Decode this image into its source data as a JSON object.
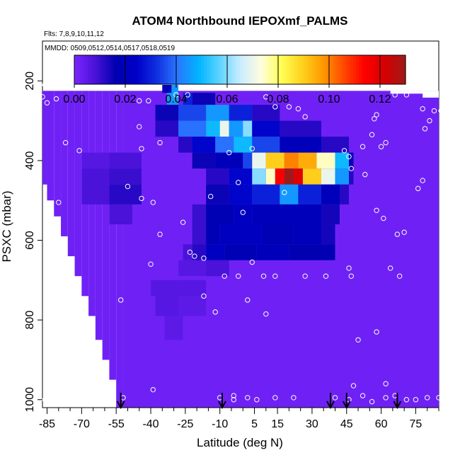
{
  "chart_data": {
    "type": "heatmap",
    "title": "ATOM4 Northbound IEPOXmf_PALMS",
    "info_lines": [
      "Flts: 7,8,9,10,11,12",
      "MMDD: 0509,0512,0514,0517,0518,0519"
    ],
    "xlabel": "Latitude (deg N)",
    "ylabel": "PSXC (mbar)",
    "xlim": [
      -87,
      85
    ],
    "ylim": [
      1020,
      100
    ],
    "x_tick_labels": [
      "-85",
      "-70",
      "-55",
      "-40",
      "-25",
      "-10",
      "5",
      "15",
      "30",
      "45",
      "60",
      "75"
    ],
    "x_tick_values": [
      -85,
      -70,
      -55,
      -40,
      -25,
      -10,
      5,
      15,
      30,
      45,
      60,
      75
    ],
    "x_minor_ticks": [
      -80,
      -75,
      -65,
      -60,
      -50,
      -45,
      -35,
      -30,
      -20,
      -15,
      -5,
      0,
      10,
      20,
      25,
      35,
      40,
      50,
      55,
      65,
      70,
      80,
      85
    ],
    "y_tick_labels": [
      "200",
      "400",
      "600",
      "800",
      "1000"
    ],
    "y_tick_values": [
      200,
      400,
      600,
      800,
      1000
    ],
    "colorbar": {
      "range": [
        0,
        0.13
      ],
      "tick_labels": [
        "0.00",
        "0.02",
        "0.04",
        "0.06",
        "0.08",
        "0.10",
        "0.12"
      ],
      "tick_values": [
        0,
        0.02,
        0.04,
        0.06,
        0.08,
        0.1,
        0.12
      ],
      "colors": [
        "#7b26ff",
        "#4a12d8",
        "#0000b0",
        "#0000c8",
        "#1030e0",
        "#2a78ff",
        "#00b4ff",
        "#5cd3ff",
        "#c8ecff",
        "#fffde0",
        "#ffff55",
        "#ffd21e",
        "#ff9a00",
        "#ff4a00",
        "#ff0000",
        "#d60000",
        "#9e1a1a"
      ]
    },
    "background_value": 0.002,
    "lat_bins": [
      -87.5,
      -82.5,
      -77.5,
      -72.5,
      -67.5,
      -62.5,
      -57.5,
      -52.5,
      -47.5,
      -42.5,
      -37.5,
      -32.5,
      -27.5,
      -22.5,
      -17.5,
      -12.5,
      -7.5,
      -2.5,
      2.5,
      7.5,
      12.5,
      17.5,
      22.5,
      27.5,
      32.5,
      37.5,
      42.5,
      47.5,
      52.5,
      57.5,
      62.5,
      67.5,
      72.5,
      77.5,
      82.5
    ],
    "column_extents": [
      [
        -87,
        -85,
        225,
        1020
      ],
      [
        -85,
        -82,
        225,
        1020
      ],
      [
        -82,
        -79,
        225,
        1020
      ],
      [
        -79,
        -76,
        225,
        1020
      ],
      [
        -76,
        -73,
        225,
        1020
      ],
      [
        -73,
        -70,
        225,
        1020
      ],
      [
        -70,
        -67,
        225,
        1020
      ],
      [
        -67,
        -64,
        225,
        1020
      ],
      [
        -64,
        -61,
        225,
        1020
      ],
      [
        -61,
        -58,
        225,
        1020
      ],
      [
        -58,
        -55,
        225,
        1020
      ],
      [
        -55,
        -52,
        225,
        1020
      ],
      [
        -52,
        85,
        225,
        1020
      ]
    ],
    "anomalies": [
      {
        "lat": [
          -33,
          -28
        ],
        "p": [
          210,
          260
        ],
        "v": 0.045
      },
      {
        "lat": [
          -35,
          -31
        ],
        "p": [
          210,
          230
        ],
        "v": 0.02
      },
      {
        "lat": [
          -26,
          -22
        ],
        "p": [
          230,
          260
        ],
        "v": 0.03
      },
      {
        "lat": [
          -22,
          -12
        ],
        "p": [
          230,
          260
        ],
        "v": 0.015
      },
      {
        "lat": [
          -38,
          -28
        ],
        "p": [
          260,
          300
        ],
        "v": 0.015
      },
      {
        "lat": [
          -28,
          -16
        ],
        "p": [
          260,
          300
        ],
        "v": 0.035
      },
      {
        "lat": [
          -16,
          -6
        ],
        "p": [
          260,
          300
        ],
        "v": 0.045
      },
      {
        "lat": [
          -6,
          4
        ],
        "p": [
          260,
          300
        ],
        "v": 0.03
      },
      {
        "lat": [
          4,
          16
        ],
        "p": [
          260,
          300
        ],
        "v": 0.012
      },
      {
        "lat": [
          -38,
          -28
        ],
        "p": [
          300,
          340
        ],
        "v": 0.012
      },
      {
        "lat": [
          -28,
          -16
        ],
        "p": [
          300,
          340
        ],
        "v": 0.04
      },
      {
        "lat": [
          -16,
          -10
        ],
        "p": [
          300,
          340
        ],
        "v": 0.05
      },
      {
        "lat": [
          -10,
          -6
        ],
        "p": [
          300,
          340
        ],
        "v": 0.07
      },
      {
        "lat": [
          -6,
          0
        ],
        "p": [
          300,
          340
        ],
        "v": 0.045
      },
      {
        "lat": [
          0,
          4
        ],
        "p": [
          300,
          340
        ],
        "v": 0.06
      },
      {
        "lat": [
          4,
          16
        ],
        "p": [
          300,
          340
        ],
        "v": 0.025
      },
      {
        "lat": [
          16,
          34
        ],
        "p": [
          300,
          340
        ],
        "v": 0.012
      },
      {
        "lat": [
          -28,
          -22
        ],
        "p": [
          340,
          380
        ],
        "v": 0.012
      },
      {
        "lat": [
          -22,
          -12
        ],
        "p": [
          340,
          380
        ],
        "v": 0.025
      },
      {
        "lat": [
          -12,
          -4
        ],
        "p": [
          340,
          380
        ],
        "v": 0.04
      },
      {
        "lat": [
          -4,
          4
        ],
        "p": [
          340,
          380
        ],
        "v": 0.05
      },
      {
        "lat": [
          4,
          16
        ],
        "p": [
          340,
          380
        ],
        "v": 0.035
      },
      {
        "lat": [
          16,
          34
        ],
        "p": [
          340,
          380
        ],
        "v": 0.02
      },
      {
        "lat": [
          34,
          46
        ],
        "p": [
          340,
          380
        ],
        "v": 0.012
      },
      {
        "lat": [
          -70,
          -58
        ],
        "p": [
          380,
          420
        ],
        "v": 0.006
      },
      {
        "lat": [
          -58,
          -44
        ],
        "p": [
          380,
          420
        ],
        "v": 0.008
      },
      {
        "lat": [
          -22,
          -12
        ],
        "p": [
          380,
          420
        ],
        "v": 0.015
      },
      {
        "lat": [
          -12,
          0
        ],
        "p": [
          380,
          420
        ],
        "v": 0.02
      },
      {
        "lat": [
          0,
          4
        ],
        "p": [
          380,
          420
        ],
        "v": 0.035
      },
      {
        "lat": [
          4,
          10
        ],
        "p": [
          380,
          420
        ],
        "v": 0.07
      },
      {
        "lat": [
          10,
          18
        ],
        "p": [
          380,
          420
        ],
        "v": 0.09
      },
      {
        "lat": [
          18,
          24
        ],
        "p": [
          380,
          420
        ],
        "v": 0.1
      },
      {
        "lat": [
          24,
          32
        ],
        "p": [
          380,
          420
        ],
        "v": 0.095
      },
      {
        "lat": [
          32,
          40
        ],
        "p": [
          380,
          420
        ],
        "v": 0.075
      },
      {
        "lat": [
          40,
          46
        ],
        "p": [
          380,
          420
        ],
        "v": 0.05
      },
      {
        "lat": [
          46,
          48
        ],
        "p": [
          380,
          420
        ],
        "v": 0.015
      },
      {
        "lat": [
          -70,
          -58
        ],
        "p": [
          420,
          460
        ],
        "v": 0.008
      },
      {
        "lat": [
          -58,
          -44
        ],
        "p": [
          420,
          460
        ],
        "v": 0.01
      },
      {
        "lat": [
          -16,
          -6
        ],
        "p": [
          420,
          460
        ],
        "v": 0.012
      },
      {
        "lat": [
          -6,
          4
        ],
        "p": [
          420,
          460
        ],
        "v": 0.025
      },
      {
        "lat": [
          4,
          10
        ],
        "p": [
          420,
          460
        ],
        "v": 0.06
      },
      {
        "lat": [
          10,
          14
        ],
        "p": [
          420,
          460
        ],
        "v": 0.075
      },
      {
        "lat": [
          14,
          18
        ],
        "p": [
          420,
          460
        ],
        "v": 0.115
      },
      {
        "lat": [
          18,
          22
        ],
        "p": [
          420,
          460
        ],
        "v": 0.13
      },
      {
        "lat": [
          22,
          26
        ],
        "p": [
          420,
          460
        ],
        "v": 0.12
      },
      {
        "lat": [
          26,
          34
        ],
        "p": [
          420,
          460
        ],
        "v": 0.09
      },
      {
        "lat": [
          34,
          40
        ],
        "p": [
          420,
          460
        ],
        "v": 0.07
      },
      {
        "lat": [
          40,
          46
        ],
        "p": [
          420,
          460
        ],
        "v": 0.045
      },
      {
        "lat": [
          46,
          48
        ],
        "p": [
          420,
          460
        ],
        "v": 0.012
      },
      {
        "lat": [
          -70,
          -58
        ],
        "p": [
          460,
          510
        ],
        "v": 0.008
      },
      {
        "lat": [
          -58,
          -44
        ],
        "p": [
          460,
          510
        ],
        "v": 0.012
      },
      {
        "lat": [
          -16,
          -6
        ],
        "p": [
          460,
          510
        ],
        "v": 0.015
      },
      {
        "lat": [
          -6,
          4
        ],
        "p": [
          460,
          510
        ],
        "v": 0.025
      },
      {
        "lat": [
          4,
          16
        ],
        "p": [
          460,
          510
        ],
        "v": 0.03
      },
      {
        "lat": [
          16,
          24
        ],
        "p": [
          460,
          510
        ],
        "v": 0.045
      },
      {
        "lat": [
          24,
          34
        ],
        "p": [
          460,
          510
        ],
        "v": 0.03
      },
      {
        "lat": [
          34,
          42
        ],
        "p": [
          460,
          510
        ],
        "v": 0.02
      },
      {
        "lat": [
          42,
          46
        ],
        "p": [
          460,
          510
        ],
        "v": 0.012
      },
      {
        "lat": [
          -58,
          -48
        ],
        "p": [
          510,
          560
        ],
        "v": 0.008
      },
      {
        "lat": [
          -22,
          -16
        ],
        "p": [
          510,
          560
        ],
        "v": 0.01
      },
      {
        "lat": [
          -16,
          -4
        ],
        "p": [
          510,
          560
        ],
        "v": 0.018
      },
      {
        "lat": [
          -4,
          4
        ],
        "p": [
          510,
          560
        ],
        "v": 0.022
      },
      {
        "lat": [
          4,
          34
        ],
        "p": [
          510,
          560
        ],
        "v": 0.02
      },
      {
        "lat": [
          34,
          42
        ],
        "p": [
          510,
          560
        ],
        "v": 0.014
      },
      {
        "lat": [
          -22,
          -16
        ],
        "p": [
          560,
          610
        ],
        "v": 0.01
      },
      {
        "lat": [
          -16,
          -10
        ],
        "p": [
          560,
          610
        ],
        "v": 0.018
      },
      {
        "lat": [
          -10,
          8
        ],
        "p": [
          560,
          610
        ],
        "v": 0.022
      },
      {
        "lat": [
          8,
          22
        ],
        "p": [
          560,
          610
        ],
        "v": 0.018
      },
      {
        "lat": [
          22,
          34
        ],
        "p": [
          560,
          610
        ],
        "v": 0.02
      },
      {
        "lat": [
          34,
          40
        ],
        "p": [
          560,
          610
        ],
        "v": 0.014
      },
      {
        "lat": [
          -26,
          -22
        ],
        "p": [
          610,
          650
        ],
        "v": 0.008
      },
      {
        "lat": [
          -22,
          -16
        ],
        "p": [
          610,
          650
        ],
        "v": 0.012
      },
      {
        "lat": [
          -16,
          -8
        ],
        "p": [
          610,
          650
        ],
        "v": 0.022
      },
      {
        "lat": [
          -8,
          6
        ],
        "p": [
          610,
          650
        ],
        "v": 0.018
      },
      {
        "lat": [
          6,
          20
        ],
        "p": [
          610,
          650
        ],
        "v": 0.02
      },
      {
        "lat": [
          20,
          40
        ],
        "p": [
          610,
          650
        ],
        "v": 0.016
      },
      {
        "lat": [
          -28,
          -16
        ],
        "p": [
          650,
          690
        ],
        "v": 0.006
      },
      {
        "lat": [
          -16,
          -6
        ],
        "p": [
          650,
          690
        ],
        "v": 0.008
      },
      {
        "lat": [
          -40,
          -28
        ],
        "p": [
          700,
          740
        ],
        "v": 0.006
      },
      {
        "lat": [
          -28,
          -16
        ],
        "p": [
          700,
          740
        ],
        "v": 0.006
      },
      {
        "lat": [
          -38,
          -28
        ],
        "p": [
          740,
          790
        ],
        "v": 0.006
      },
      {
        "lat": [
          -28,
          -16
        ],
        "p": [
          740,
          790
        ],
        "v": 0.005
      },
      {
        "lat": [
          -34,
          -26
        ],
        "p": [
          790,
          850
        ],
        "v": 0.005
      }
    ],
    "observation_points": [
      [
        -86,
        210
      ],
      [
        -81,
        245
      ],
      [
        -72,
        205
      ],
      [
        -77,
        355
      ],
      [
        -80,
        505
      ],
      [
        -71,
        375
      ],
      [
        -45,
        250
      ],
      [
        -41,
        250
      ],
      [
        -44,
        370
      ],
      [
        -36,
        355
      ],
      [
        -45,
        315
      ],
      [
        -29,
        235
      ],
      [
        -24,
        235
      ],
      [
        -18,
        215
      ],
      [
        -50,
        465
      ],
      [
        -44,
        495
      ],
      [
        -39,
        505
      ],
      [
        -36,
        585
      ],
      [
        -26,
        555
      ],
      [
        -21,
        640
      ],
      [
        -14,
        490
      ],
      [
        -6,
        380
      ],
      [
        -2,
        455
      ],
      [
        0,
        530
      ],
      [
        4,
        370
      ],
      [
        10,
        240
      ],
      [
        14,
        265
      ],
      [
        20,
        265
      ],
      [
        24,
        270
      ],
      [
        27,
        290
      ],
      [
        18,
        480
      ],
      [
        -23,
        630
      ],
      [
        -17,
        645
      ],
      [
        -8,
        690
      ],
      [
        -2,
        690
      ],
      [
        4,
        655
      ],
      [
        9,
        690
      ],
      [
        14,
        690
      ],
      [
        27,
        690
      ],
      [
        36,
        690
      ],
      [
        46,
        670
      ],
      [
        47,
        690
      ],
      [
        52,
        365
      ],
      [
        56,
        335
      ],
      [
        57,
        295
      ],
      [
        58,
        285
      ],
      [
        60,
        365
      ],
      [
        62,
        355
      ],
      [
        66,
        235
      ],
      [
        71,
        235
      ],
      [
        74,
        225
      ],
      [
        78,
        270
      ],
      [
        79,
        320
      ],
      [
        81,
        300
      ],
      [
        83,
        275
      ],
      [
        86,
        275
      ],
      [
        78,
        450
      ],
      [
        76,
        470
      ],
      [
        70,
        580
      ],
      [
        67,
        585
      ],
      [
        61,
        545
      ],
      [
        58,
        525
      ],
      [
        53,
        435
      ],
      [
        47,
        420
      ],
      [
        46,
        390
      ],
      [
        44,
        375
      ],
      [
        43,
        205
      ],
      [
        49,
        205
      ],
      [
        64,
        670
      ],
      [
        68,
        690
      ],
      [
        58,
        830
      ],
      [
        50,
        850
      ],
      [
        48,
        965
      ],
      [
        62,
        960
      ],
      [
        66,
        990
      ],
      [
        71,
        1000
      ],
      [
        70,
        1030
      ],
      [
        75,
        1000
      ],
      [
        80,
        995
      ],
      [
        85,
        995
      ],
      [
        -52,
        995
      ],
      [
        -39,
        975
      ],
      [
        -53,
        750
      ],
      [
        -40,
        660
      ],
      [
        -17,
        740
      ],
      [
        -12,
        780
      ],
      [
        2,
        750
      ],
      [
        10,
        785
      ],
      [
        -4,
        990
      ],
      [
        -10,
        995
      ],
      [
        -4,
        1000
      ],
      [
        2,
        995
      ],
      [
        6,
        1000
      ],
      [
        14,
        995
      ],
      [
        22,
        995
      ],
      [
        40,
        995
      ],
      [
        46,
        1000
      ],
      [
        52,
        990
      ],
      [
        56,
        1005
      ],
      [
        62,
        995
      ],
      [
        -87,
        240
      ],
      [
        -85,
        255
      ],
      [
        -86,
        1000
      ],
      [
        -82,
        1000
      ]
    ],
    "arrows_lat": [
      -53,
      -9,
      38,
      45,
      67
    ]
  }
}
